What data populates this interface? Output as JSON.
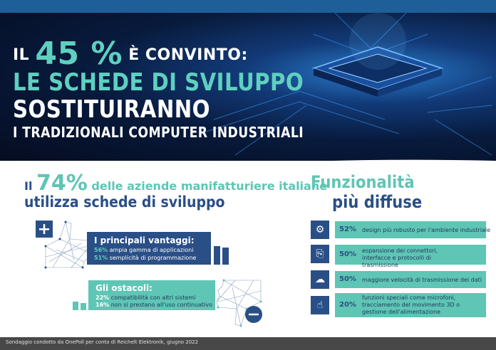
{
  "header": {
    "line1_prefix": "IL",
    "line1_pct": "45 %",
    "line1_suffix": "È CONVINTO:",
    "line2": "LE SCHEDE DI SVILUPPO",
    "line3": "SOSTITUIRANNO",
    "line4": "I TRADIZIONALI COMPUTER INDUSTRIALI"
  },
  "usage": {
    "prefix": "Il",
    "pct": "74%",
    "rest": "delle aziende manifatturiere italiane",
    "subtitle": "utilizza schede di sviluppo"
  },
  "advantages": {
    "title": "I principali vantaggi:",
    "items": [
      {
        "pct": "56%",
        "text": "ampia gamma di applicazioni"
      },
      {
        "pct": "51%",
        "text": "semplicità di programmazione"
      }
    ]
  },
  "obstacles": {
    "title": "Gli ostacoli:",
    "items": [
      {
        "pct": "22%",
        "text": "compatibilità con altri sistemi"
      },
      {
        "pct": "16%",
        "text": "non si prestano all'uso continuativo"
      }
    ]
  },
  "features": {
    "title_line1": "Funzionalità",
    "title_line2": "più diffuse",
    "items": [
      {
        "pct": "52%",
        "text": "design più robusto per l'ambiente industriale",
        "icon": "gears-icon"
      },
      {
        "pct": "50%",
        "text": "espansione dei connettori, interfacce e protocolli di trasmissione",
        "icon": "connector-icon"
      },
      {
        "pct": "50%",
        "text": "maggiore velocità di trasmissione dei dati",
        "icon": "cloud-transfer-icon"
      },
      {
        "pct": "20%",
        "text": "funzioni speciali come microfoni, tracciamento del movimento 3D o gestione dell'alimentazione",
        "icon": "touch-hand-icon"
      }
    ]
  },
  "footer": {
    "source": "Sondaggio condotto da OnePoll per conto di Reichelt Elektronik, giugno 2022"
  },
  "colors": {
    "navy": "#2a4f87",
    "teal": "#5fc5b4",
    "dark_bg": "#081a3c"
  }
}
